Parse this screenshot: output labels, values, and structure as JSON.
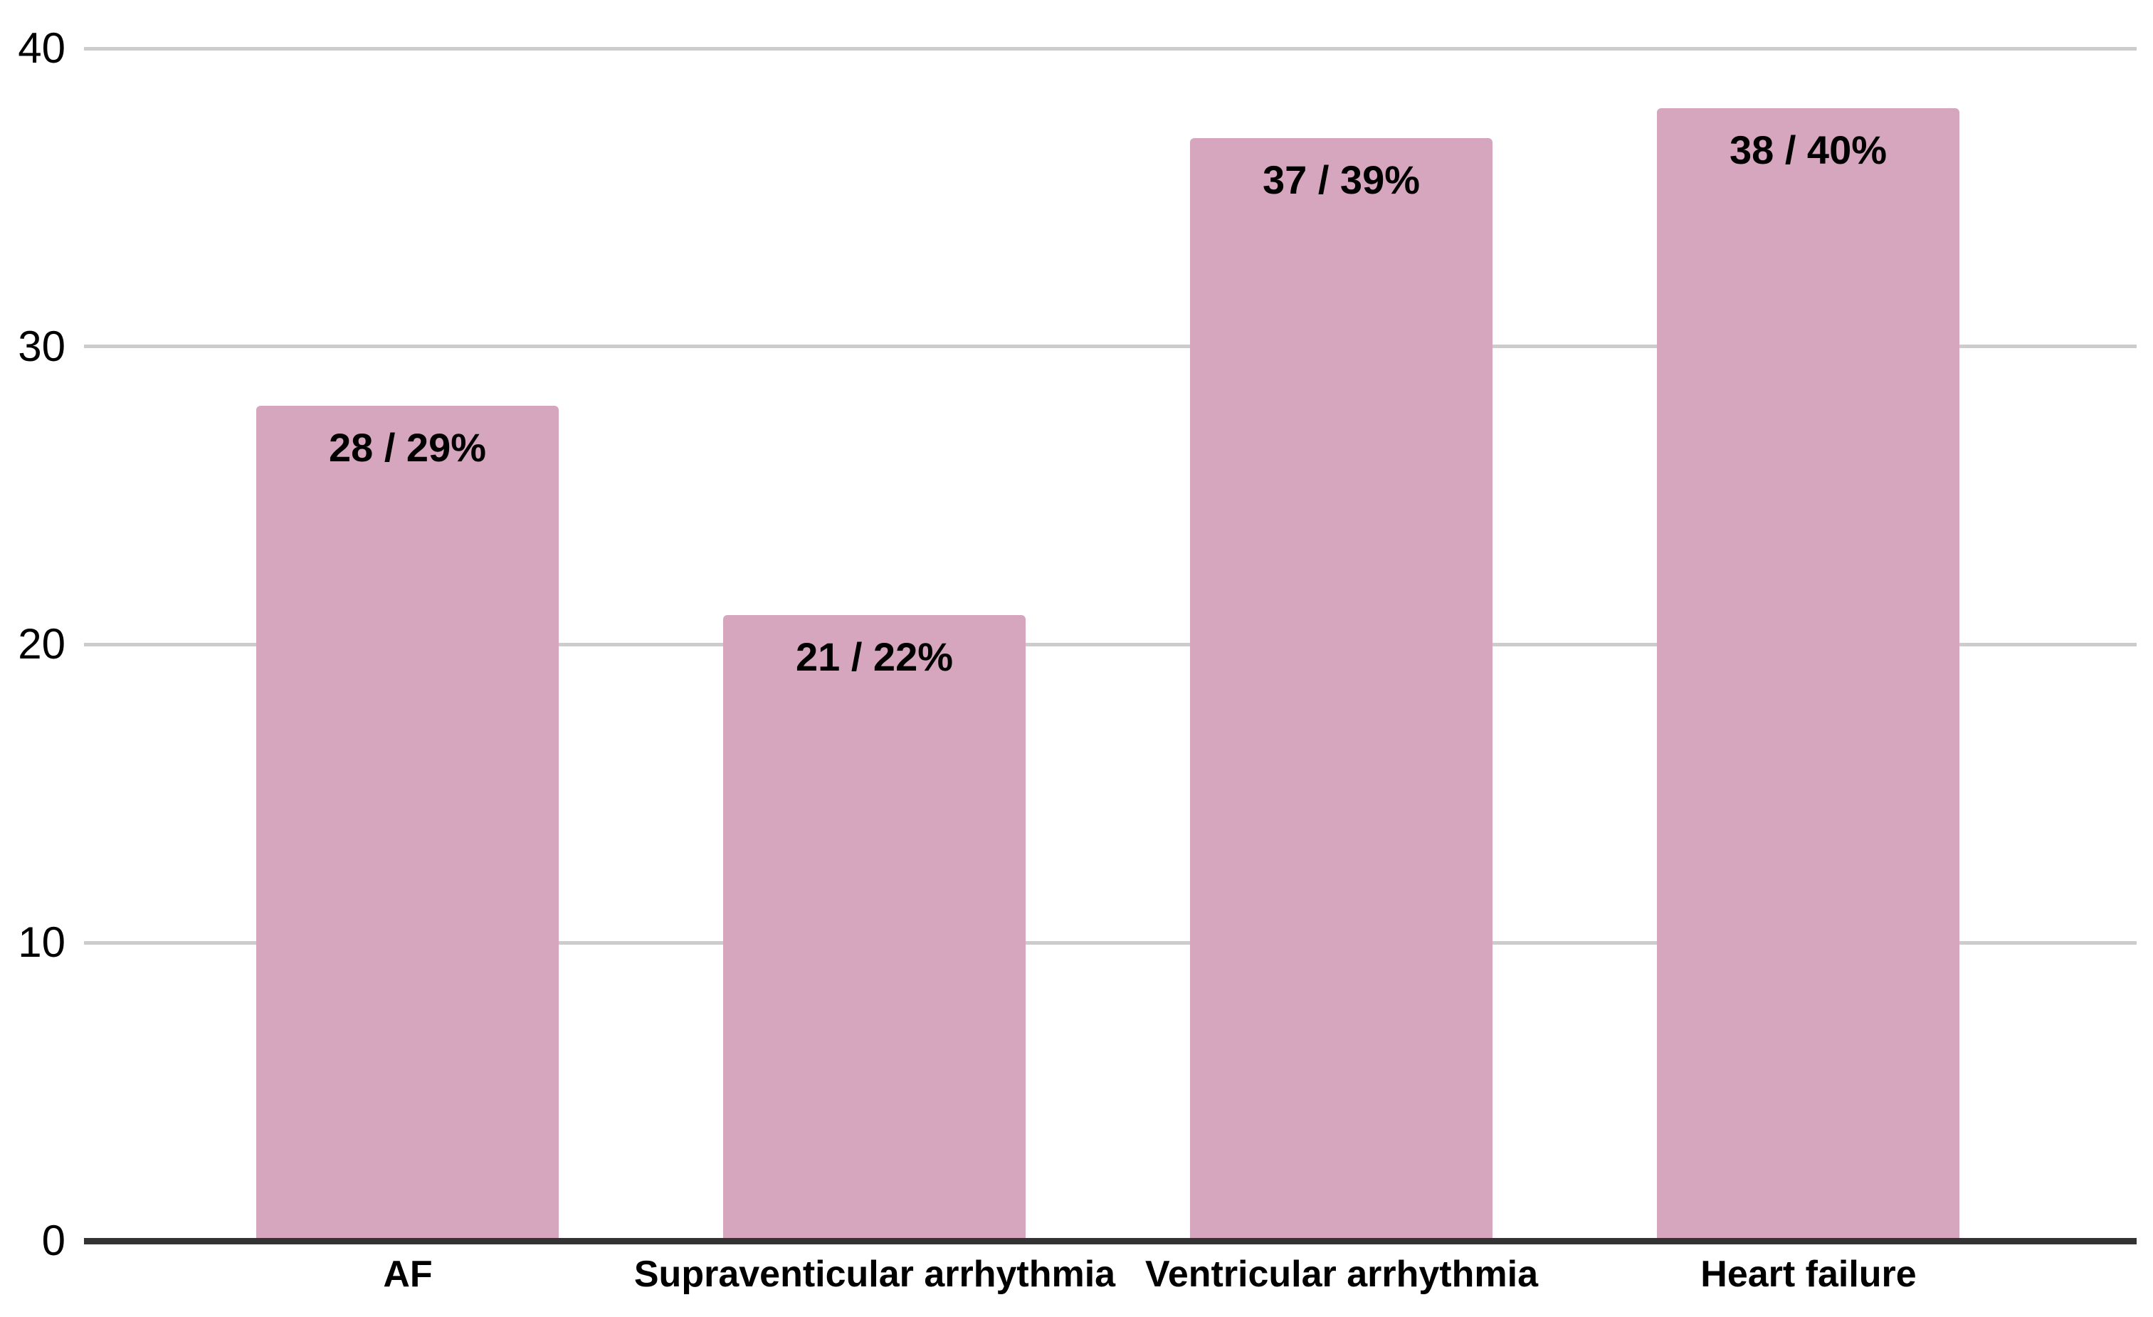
{
  "chart_data": {
    "type": "bar",
    "title": "",
    "categories": [
      "AF",
      "Supraventicular arrhythmia",
      "Ventricular arrhythmia",
      "Heart failure"
    ],
    "values": [
      28,
      21,
      37,
      38
    ],
    "percentages": [
      29,
      22,
      39,
      40
    ],
    "bar_labels": [
      "28 / 29%",
      "21 / 22%",
      "37 / 39%",
      "38 / 40%"
    ],
    "xlabel": "",
    "ylabel": "",
    "ylim": [
      0,
      40
    ],
    "y_ticks": [
      0,
      10,
      20,
      30,
      40
    ],
    "grid": true,
    "legend_position": "none",
    "bar_color": "#d5a6bd",
    "gridline_color": "#cccccc",
    "axis_line_color": "#333333",
    "label_color": "#000000"
  }
}
